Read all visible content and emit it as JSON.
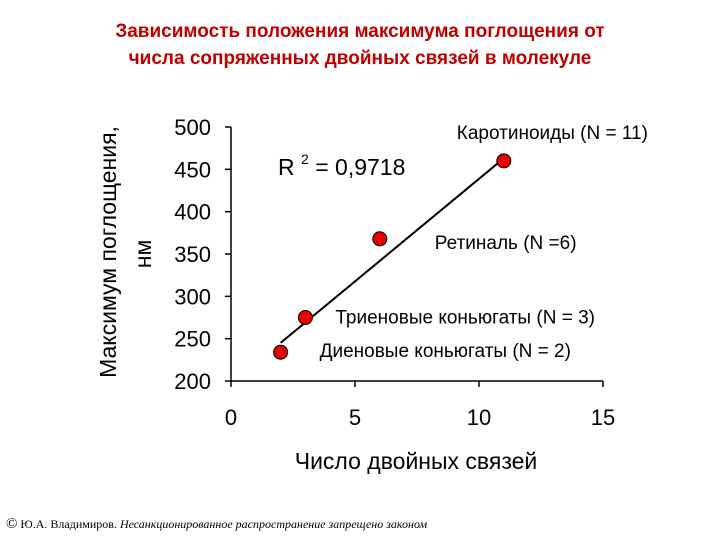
{
  "title": {
    "line1": "Зависимость положения максимума поглощения от",
    "line2": "числа сопряженных двойных связей в молекуле"
  },
  "chart_data": {
    "type": "scatter",
    "xlabel": "Число двойных связей",
    "ylabel_line1": "Максимум поглощения,",
    "ylabel_line2": "нм",
    "xlim": [
      0,
      15
    ],
    "ylim": [
      200,
      500
    ],
    "x_ticks": [
      0,
      5,
      10,
      15
    ],
    "y_ticks": [
      200,
      250,
      300,
      350,
      400,
      450,
      500
    ],
    "grid": false,
    "series": [
      {
        "x": [
          2,
          3,
          6,
          11
        ],
        "y": [
          234,
          275,
          368,
          460
        ]
      }
    ],
    "trendline": {
      "x": [
        2,
        11
      ],
      "y": [
        245,
        463
      ]
    },
    "r_squared_label": "R",
    "r_squared_sup": "2",
    "r_squared_value": " = 0,9718",
    "annotations": [
      {
        "text": "Каротиноиды (N = 11)",
        "x": 11,
        "y": 460
      },
      {
        "text": "Ретиналь (N =6)",
        "x": 6,
        "y": 368
      },
      {
        "text": "Триеновые коньюгаты (N = 3)",
        "x": 3,
        "y": 275
      },
      {
        "text": "Диеновые коньюгаты (N = 2)",
        "x": 2,
        "y": 234
      }
    ],
    "colors": {
      "point": "#e60000",
      "point_stroke": "#000000",
      "line": "#000000",
      "text": "#000000"
    }
  },
  "footer": {
    "copyright": "©",
    "author": "Ю.А. Владимиров.",
    "note": "Несанкционированное распространение запрещено законом"
  }
}
